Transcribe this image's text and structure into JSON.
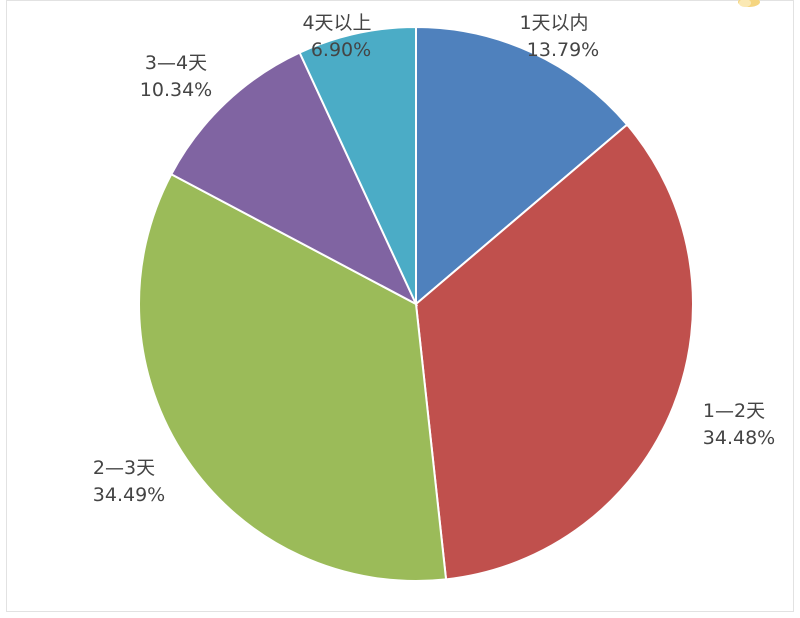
{
  "chart_data": {
    "type": "pie",
    "start_angle_deg": 0,
    "direction": "clockwise",
    "slices": [
      {
        "label": "1天以内",
        "value": 13.79,
        "value_label": "13.79%",
        "color": "#4F81BD"
      },
      {
        "label": "1—2天",
        "value": 34.48,
        "value_label": "34.48%",
        "color": "#C0504D"
      },
      {
        "label": "2—3天",
        "value": 34.49,
        "value_label": "34.49%",
        "color": "#9BBB59"
      },
      {
        "label": "3—4天",
        "value": 10.34,
        "value_label": "10.34%",
        "color": "#8064A2"
      },
      {
        "label": "4天以上",
        "value": 6.9,
        "value_label": "6.90%",
        "color": "#4BACC6"
      }
    ]
  }
}
